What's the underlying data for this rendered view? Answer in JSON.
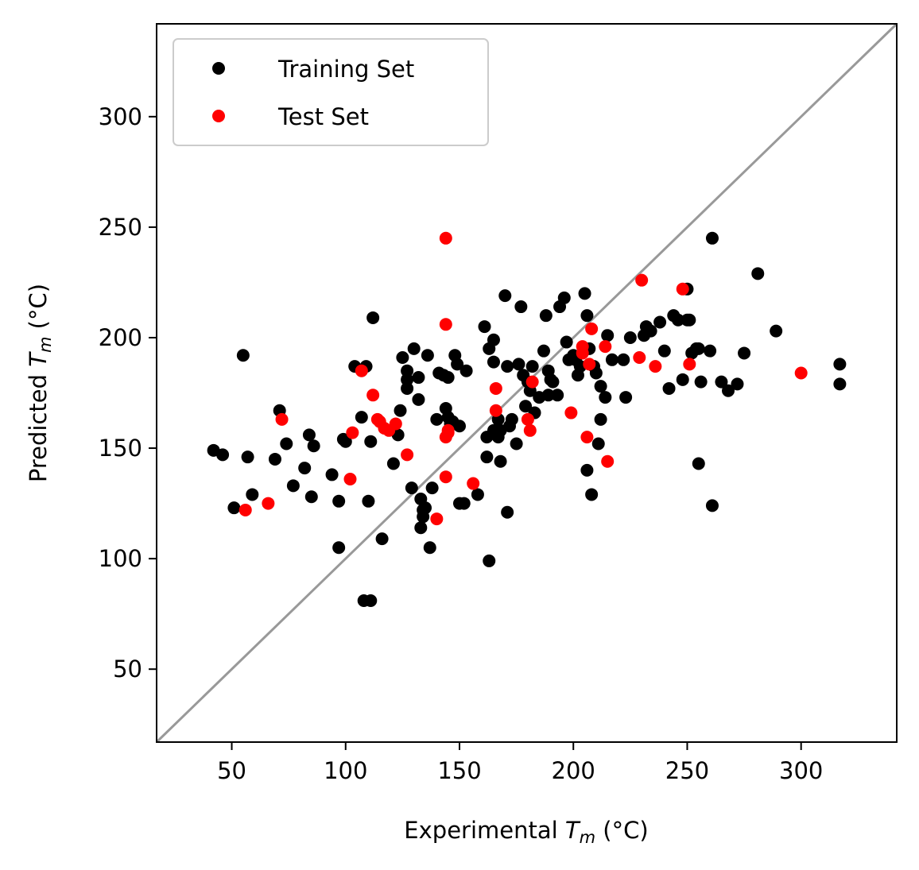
{
  "chart_data": {
    "type": "scatter",
    "xlabel": {
      "prefix": "Experimental ",
      "symbol": "T",
      "sub": "m",
      "suffix": " (°C)"
    },
    "ylabel": {
      "prefix": "Predicted ",
      "symbol": "T",
      "sub": "m",
      "suffix": " (°C)"
    },
    "xlim": [
      17,
      342
    ],
    "ylim": [
      17,
      342
    ],
    "xticks": [
      50,
      100,
      150,
      200,
      250,
      300
    ],
    "yticks": [
      50,
      100,
      150,
      200,
      250,
      300
    ],
    "grid": false,
    "legend_position": "top-left",
    "reference_line": {
      "type": "identity",
      "color": "#999999"
    },
    "series": [
      {
        "name": "Training Set",
        "color": "#000000",
        "points": [
          [
            42,
            149
          ],
          [
            46,
            147
          ],
          [
            51,
            123
          ],
          [
            55,
            192
          ],
          [
            57,
            146
          ],
          [
            59,
            129
          ],
          [
            69,
            145
          ],
          [
            71,
            167
          ],
          [
            74,
            152
          ],
          [
            77,
            133
          ],
          [
            82,
            141
          ],
          [
            84,
            156
          ],
          [
            85,
            128
          ],
          [
            86,
            151
          ],
          [
            94,
            138
          ],
          [
            97,
            126
          ],
          [
            97,
            105
          ],
          [
            99,
            154
          ],
          [
            100,
            153
          ],
          [
            104,
            187
          ],
          [
            107,
            164
          ],
          [
            108,
            81
          ],
          [
            109,
            187
          ],
          [
            110,
            126
          ],
          [
            111,
            81
          ],
          [
            111,
            153
          ],
          [
            112,
            209
          ],
          [
            116,
            109
          ],
          [
            121,
            143
          ],
          [
            123,
            156
          ],
          [
            124,
            167
          ],
          [
            125,
            191
          ],
          [
            127,
            185
          ],
          [
            127,
            181
          ],
          [
            127,
            177
          ],
          [
            129,
            132
          ],
          [
            130,
            195
          ],
          [
            132,
            182
          ],
          [
            132,
            172
          ],
          [
            133,
            114
          ],
          [
            133,
            127
          ],
          [
            134,
            122
          ],
          [
            134,
            119
          ],
          [
            135,
            123
          ],
          [
            136,
            192
          ],
          [
            137,
            105
          ],
          [
            138,
            132
          ],
          [
            140,
            163
          ],
          [
            141,
            184
          ],
          [
            143,
            183
          ],
          [
            144,
            168
          ],
          [
            145,
            182
          ],
          [
            145,
            164
          ],
          [
            146,
            161
          ],
          [
            147,
            162
          ],
          [
            148,
            192
          ],
          [
            149,
            188
          ],
          [
            150,
            160
          ],
          [
            150,
            125
          ],
          [
            152,
            125
          ],
          [
            153,
            185
          ],
          [
            158,
            129
          ],
          [
            161,
            205
          ],
          [
            162,
            155
          ],
          [
            162,
            146
          ],
          [
            163,
            195
          ],
          [
            163,
            99
          ],
          [
            165,
            199
          ],
          [
            165,
            189
          ],
          [
            165,
            158
          ],
          [
            167,
            155
          ],
          [
            167,
            163
          ],
          [
            168,
            158
          ],
          [
            168,
            144
          ],
          [
            170,
            219
          ],
          [
            171,
            187
          ],
          [
            171,
            121
          ],
          [
            172,
            160
          ],
          [
            173,
            163
          ],
          [
            175,
            152
          ],
          [
            176,
            188
          ],
          [
            177,
            214
          ],
          [
            178,
            183
          ],
          [
            179,
            169
          ],
          [
            180,
            180
          ],
          [
            181,
            176
          ],
          [
            182,
            187
          ],
          [
            183,
            166
          ],
          [
            185,
            173
          ],
          [
            187,
            194
          ],
          [
            188,
            210
          ],
          [
            189,
            185
          ],
          [
            189,
            174
          ],
          [
            190,
            181
          ],
          [
            191,
            180
          ],
          [
            193,
            174
          ],
          [
            194,
            214
          ],
          [
            196,
            218
          ],
          [
            197,
            198
          ],
          [
            198,
            190
          ],
          [
            200,
            192
          ],
          [
            201,
            190
          ],
          [
            202,
            183
          ],
          [
            203,
            187
          ],
          [
            205,
            220
          ],
          [
            206,
            210
          ],
          [
            206,
            140
          ],
          [
            207,
            195
          ],
          [
            208,
            129
          ],
          [
            209,
            187
          ],
          [
            210,
            184
          ],
          [
            211,
            152
          ],
          [
            212,
            163
          ],
          [
            212,
            178
          ],
          [
            214,
            173
          ],
          [
            215,
            201
          ],
          [
            217,
            190
          ],
          [
            222,
            190
          ],
          [
            223,
            173
          ],
          [
            225,
            200
          ],
          [
            231,
            201
          ],
          [
            232,
            205
          ],
          [
            234,
            203
          ],
          [
            238,
            207
          ],
          [
            240,
            194
          ],
          [
            242,
            177
          ],
          [
            244,
            210
          ],
          [
            246,
            208
          ],
          [
            248,
            181
          ],
          [
            250,
            222
          ],
          [
            250,
            208
          ],
          [
            251,
            208
          ],
          [
            252,
            193
          ],
          [
            254,
            195
          ],
          [
            255,
            195
          ],
          [
            255,
            143
          ],
          [
            256,
            180
          ],
          [
            260,
            194
          ],
          [
            261,
            245
          ],
          [
            261,
            124
          ],
          [
            265,
            180
          ],
          [
            268,
            176
          ],
          [
            272,
            179
          ],
          [
            275,
            193
          ],
          [
            281,
            229
          ],
          [
            289,
            203
          ],
          [
            317,
            188
          ],
          [
            317,
            179
          ]
        ]
      },
      {
        "name": "Test Set",
        "color": "#ff0000",
        "points": [
          [
            56,
            122
          ],
          [
            66,
            125
          ],
          [
            72,
            163
          ],
          [
            102,
            136
          ],
          [
            103,
            157
          ],
          [
            107,
            185
          ],
          [
            112,
            174
          ],
          [
            114,
            163
          ],
          [
            115,
            162
          ],
          [
            117,
            159
          ],
          [
            119,
            158
          ],
          [
            122,
            161
          ],
          [
            127,
            147
          ],
          [
            140,
            118
          ],
          [
            144,
            137
          ],
          [
            144,
            245
          ],
          [
            144,
            155
          ],
          [
            144,
            206
          ],
          [
            145,
            157
          ],
          [
            145,
            158
          ],
          [
            156,
            134
          ],
          [
            166,
            167
          ],
          [
            166,
            177
          ],
          [
            180,
            163
          ],
          [
            181,
            158
          ],
          [
            182,
            180
          ],
          [
            199,
            166
          ],
          [
            204,
            193
          ],
          [
            204,
            196
          ],
          [
            206,
            155
          ],
          [
            207,
            188
          ],
          [
            208,
            204
          ],
          [
            214,
            196
          ],
          [
            215,
            144
          ],
          [
            229,
            191
          ],
          [
            230,
            226
          ],
          [
            236,
            187
          ],
          [
            248,
            222
          ],
          [
            251,
            188
          ],
          [
            300,
            184
          ]
        ]
      }
    ]
  }
}
